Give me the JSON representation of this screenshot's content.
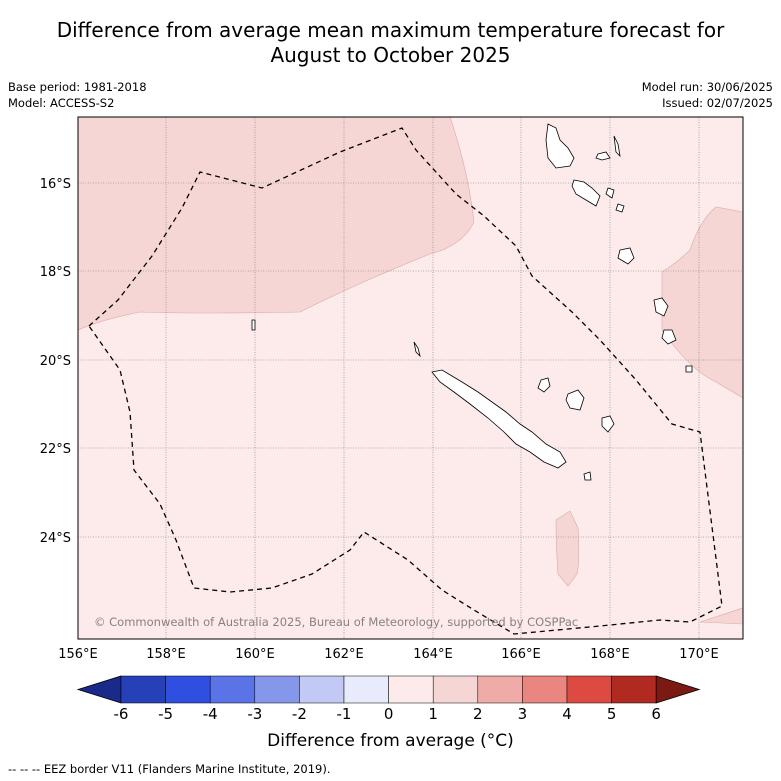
{
  "title_line1": "Difference from average mean maximum temperature forecast for",
  "title_line2": "August to October 2025",
  "base_period": "Base period: 1981-2018",
  "model": "Model: ACCESS-S2",
  "model_run": "Model run: 30/06/2025",
  "issued": "Issued: 02/07/2025",
  "copyright": "© Commonwealth of Australia 2025, Bureau of Meteorology, supported by COSPPac",
  "lat_labels": [
    "16°S",
    "18°S",
    "20°S",
    "22°S",
    "24°S"
  ],
  "lon_labels": [
    "156°E",
    "158°E",
    "160°E",
    "162°E",
    "164°E",
    "166°E",
    "168°E",
    "170°E"
  ],
  "colorbar": {
    "title": "Difference from average (°C)",
    "ticks": [
      "-6",
      "-5",
      "-4",
      "-3",
      "-2",
      "-1",
      "0",
      "1",
      "2",
      "3",
      "4",
      "5",
      "6"
    ],
    "colors": [
      "#1a2a8a",
      "#2540b8",
      "#2f4fe0",
      "#5a73e6",
      "#8597ea",
      "#c2c9f4",
      "#e8ebfb",
      "#fcebea",
      "#f6d6d4",
      "#efaba7",
      "#e98680",
      "#dd4a42",
      "#b02a22",
      "#7a1a12"
    ]
  },
  "footnote": "--  --  -- EEZ border V11 (Flanders Marine Institute, 2019)."
}
